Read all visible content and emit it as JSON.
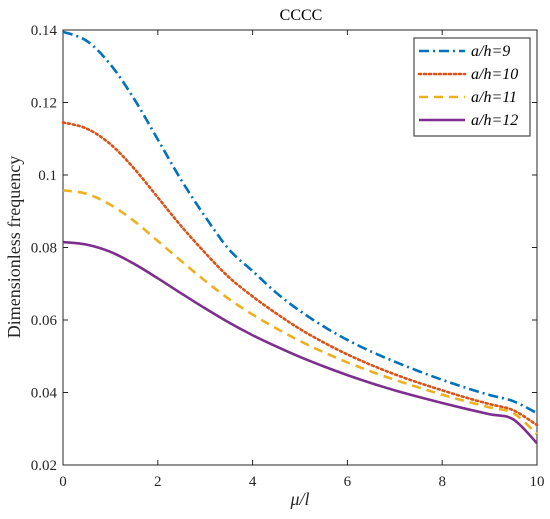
{
  "chart_data": {
    "type": "line",
    "title": "CCCC",
    "xlabel": "μ/l",
    "ylabel": "Dimensionless frequency",
    "xlim": [
      0,
      10
    ],
    "ylim": [
      0.02,
      0.14
    ],
    "xticks": [
      "0",
      "2",
      "4",
      "6",
      "8",
      "10"
    ],
    "yticks": [
      "0.02",
      "0.04",
      "0.06",
      "0.08",
      "0.1",
      "0.12",
      "0.14"
    ],
    "grid": false,
    "legend_position": "top-right",
    "x": [
      0,
      0.5,
      1,
      1.5,
      2,
      2.5,
      3,
      3.5,
      4,
      4.5,
      5,
      5.5,
      6,
      6.5,
      7,
      7.5,
      8,
      8.5,
      9,
      9.5,
      10
    ],
    "series": [
      {
        "name": "a/h=9",
        "color": "#0072BD",
        "dash": "dash-dot",
        "values": [
          0.1395,
          0.137,
          0.1305,
          0.121,
          0.1098,
          0.0985,
          0.0885,
          0.0795,
          0.0735,
          0.0675,
          0.0625,
          0.0582,
          0.0545,
          0.0513,
          0.0485,
          0.0459,
          0.0435,
          0.0413,
          0.0393,
          0.0376,
          0.0343
        ]
      },
      {
        "name": "a/h=10",
        "color": "#D95319",
        "dash": "dotted",
        "values": [
          0.1145,
          0.1128,
          0.1085,
          0.1018,
          0.0938,
          0.0858,
          0.0785,
          0.0718,
          0.0665,
          0.0618,
          0.0575,
          0.0538,
          0.0505,
          0.0476,
          0.045,
          0.0427,
          0.0406,
          0.0386,
          0.0368,
          0.0351,
          0.031
        ]
      },
      {
        "name": "a/h=11",
        "color": "#EDB120",
        "dash": "dashed",
        "values": [
          0.0958,
          0.0948,
          0.0918,
          0.0873,
          0.0818,
          0.0762,
          0.0708,
          0.0658,
          0.0615,
          0.0577,
          0.0542,
          0.0511,
          0.0483,
          0.0458,
          0.0435,
          0.0414,
          0.0394,
          0.0376,
          0.0359,
          0.0343,
          0.0285
        ]
      },
      {
        "name": "a/h=12",
        "color": "#7E2F8E",
        "dash": "solid",
        "values": [
          0.0815,
          0.0808,
          0.0788,
          0.0755,
          0.0715,
          0.0673,
          0.0632,
          0.0593,
          0.0558,
          0.0527,
          0.0498,
          0.0472,
          0.0448,
          0.0426,
          0.0406,
          0.0388,
          0.0371,
          0.0355,
          0.034,
          0.0326,
          0.026
        ]
      }
    ]
  }
}
